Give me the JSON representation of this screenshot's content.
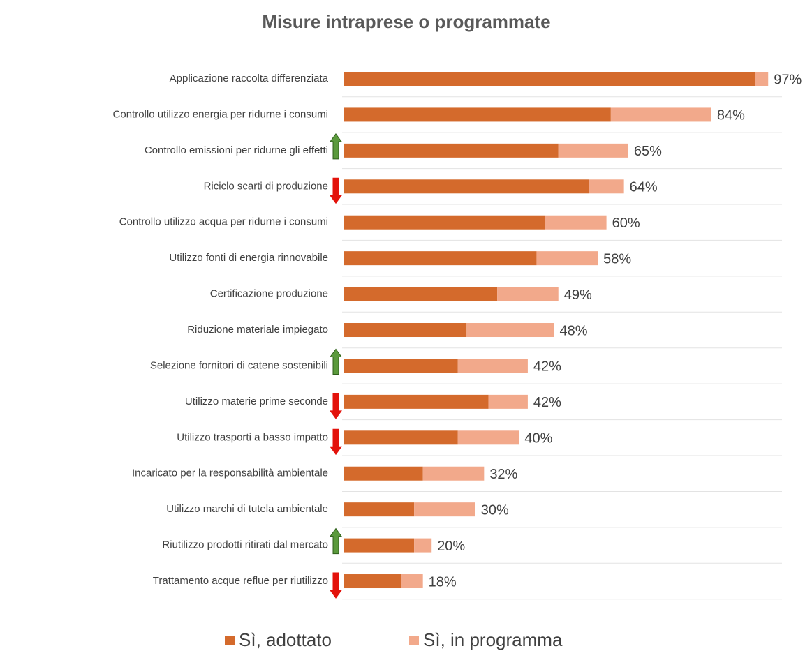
{
  "chart_data": {
    "type": "stacked-barh",
    "title": "Misure intraprese o programmate",
    "categories": [
      "Applicazione raccolta differenziata",
      "Controllo utilizzo energia per ridurne i consumi",
      "Controllo emissioni per ridurne gli effetti",
      "Riciclo scarti di produzione",
      "Controllo utilizzo acqua per ridurne i consumi",
      "Utilizzo fonti di energia rinnovabile",
      "Certificazione produzione",
      "Riduzione materiale impiegato",
      "Selezione fornitori di catene sostenibili",
      "Utilizzo materie prime seconde",
      "Utilizzo trasporti a basso impatto",
      "Incaricato per la responsabilità ambientale",
      "Utilizzo marchi di tutela ambientale",
      "Riutilizzo prodotti ritirati dal mercato",
      "Trattamento acque reflue per riutilizzo"
    ],
    "series": [
      {
        "name": "Sì, adottato",
        "color": "#d46a2c",
        "values": [
          94,
          61,
          49,
          56,
          46,
          44,
          35,
          28,
          26,
          33,
          26,
          18,
          16,
          16,
          13
        ]
      },
      {
        "name": "Sì, in programma",
        "color": "#f2a98b",
        "values": [
          3,
          23,
          16,
          8,
          14,
          14,
          14,
          20,
          16,
          9,
          14,
          14,
          14,
          4,
          5
        ]
      }
    ],
    "totals": [
      97,
      84,
      65,
      64,
      60,
      58,
      49,
      48,
      42,
      42,
      40,
      32,
      30,
      20,
      18
    ],
    "total_labels": [
      "97%",
      "84%",
      "65%",
      "64%",
      "60%",
      "58%",
      "49%",
      "48%",
      "42%",
      "42%",
      "40%",
      "32%",
      "30%",
      "20%",
      "18%"
    ],
    "trend": [
      null,
      null,
      "up",
      "down",
      null,
      null,
      null,
      null,
      "up",
      "down",
      "down",
      null,
      null,
      "up",
      "down"
    ],
    "trend_colors": {
      "up": "#5b9a3c",
      "down": "#e3120b"
    }
  }
}
